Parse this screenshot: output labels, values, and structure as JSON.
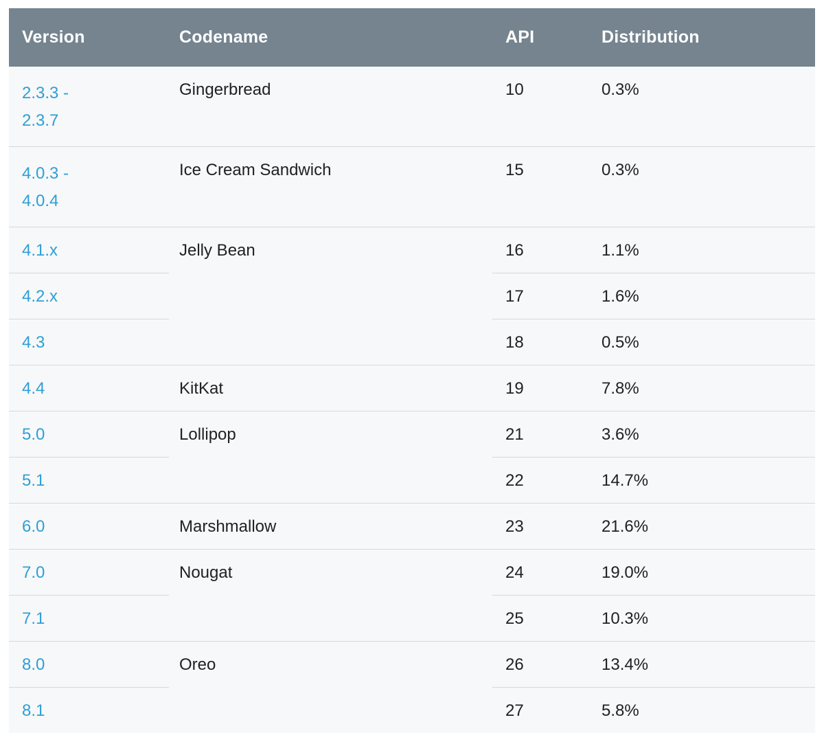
{
  "table": {
    "columns": [
      "Version",
      "Codename",
      "API",
      "Distribution"
    ],
    "rows": [
      {
        "version": "2.3.3 -\n2.3.7",
        "codename": "Gingerbread",
        "api": "10",
        "distribution": "0.3%"
      },
      {
        "version": "4.0.3 -\n4.0.4",
        "codename": "Ice Cream Sandwich",
        "api": "15",
        "distribution": "0.3%"
      },
      {
        "version": "4.1.x",
        "codename": "Jelly Bean",
        "api": "16",
        "distribution": "1.1%"
      },
      {
        "version": "4.2.x",
        "codename": "",
        "api": "17",
        "distribution": "1.6%"
      },
      {
        "version": "4.3",
        "codename": "",
        "api": "18",
        "distribution": "0.5%"
      },
      {
        "version": "4.4",
        "codename": "KitKat",
        "api": "19",
        "distribution": "7.8%"
      },
      {
        "version": "5.0",
        "codename": "Lollipop",
        "api": "21",
        "distribution": "3.6%"
      },
      {
        "version": "5.1",
        "codename": "",
        "api": "22",
        "distribution": "14.7%"
      },
      {
        "version": "6.0",
        "codename": "Marshmallow",
        "api": "23",
        "distribution": "21.6%"
      },
      {
        "version": "7.0",
        "codename": "Nougat",
        "api": "24",
        "distribution": "19.0%"
      },
      {
        "version": "7.1",
        "codename": "",
        "api": "25",
        "distribution": "10.3%"
      },
      {
        "version": "8.0",
        "codename": "Oreo",
        "api": "26",
        "distribution": "13.4%"
      },
      {
        "version": "8.1",
        "codename": "",
        "api": "27",
        "distribution": "5.8%"
      }
    ],
    "colors": {
      "header_bg": "#75848e",
      "header_text": "#ffffff",
      "row_bg": "#f7f8f9",
      "link": "#2e9fd6",
      "text": "#202124",
      "divider": "#d5d8da"
    }
  }
}
